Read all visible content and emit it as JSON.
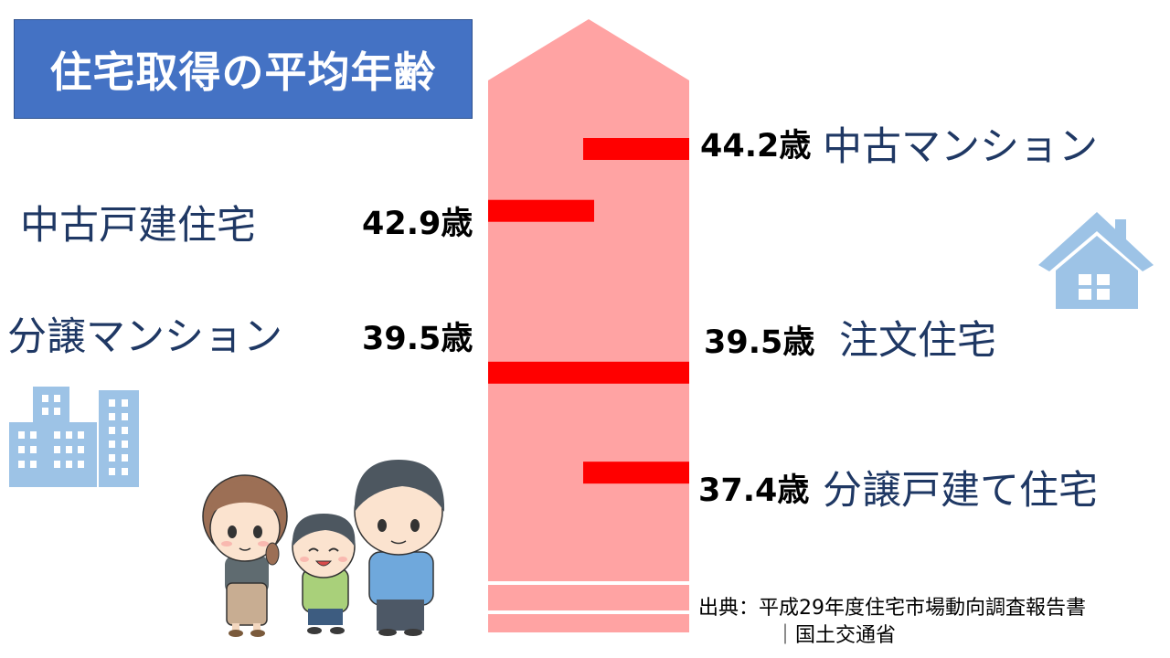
{
  "title": "住宅取得の平均年齢",
  "chart_data": {
    "type": "bar",
    "title": "住宅取得の平均年齢",
    "unit": "歳",
    "xlim": [
      37.0,
      44.2
    ],
    "categories": [
      "中古マンション",
      "中古戸建住宅",
      "分譲マンション",
      "注文住宅",
      "分譲戸建て住宅"
    ],
    "values": [
      44.2,
      42.9,
      39.5,
      39.5,
      37.4
    ],
    "data_labels": [
      "44.2歳",
      "42.9歳",
      "39.5歳",
      "39.5歳",
      "37.4歳"
    ]
  },
  "source": {
    "line1": "出典：平成29年度住宅市場動向調査報告書",
    "line2": "｜国土交通省"
  },
  "colors": {
    "title_bg": "#4472c4",
    "arrow": "#ffa3a3",
    "bar": "#ff0000",
    "label_text": "#1f3864",
    "icon": "#9dc3e6"
  },
  "icons": [
    "house-icon",
    "building-icon",
    "family-illustration"
  ]
}
